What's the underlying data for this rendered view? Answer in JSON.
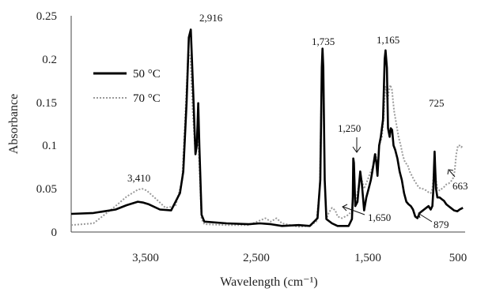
{
  "chart_data": {
    "type": "line",
    "title": "",
    "xlabel": "Wavelength (cm⁻¹)",
    "ylabel": "Absorbance",
    "xlim": [
      4000,
      450
    ],
    "ylim": [
      0,
      0.25
    ],
    "x_ticks": [
      3500,
      2500,
      1500,
      500
    ],
    "x_tick_labels": [
      "3,500",
      "2,500",
      "1,500",
      "500"
    ],
    "y_ticks": [
      0,
      0.05,
      0.1,
      0.15,
      0.2,
      0.25
    ],
    "y_tick_labels": [
      "0",
      "0.05",
      "0.1",
      "0.15",
      "0.2",
      "0.25"
    ],
    "grid": false,
    "legend_position": "top-left",
    "series": [
      {
        "name": "50 °C",
        "style": "solid",
        "color": "#000000",
        "points": [
          [
            4000,
            0.021
          ],
          [
            3800,
            0.022
          ],
          [
            3600,
            0.026
          ],
          [
            3500,
            0.031
          ],
          [
            3400,
            0.035
          ],
          [
            3350,
            0.034
          ],
          [
            3300,
            0.032
          ],
          [
            3200,
            0.026
          ],
          [
            3100,
            0.025
          ],
          [
            3020,
            0.045
          ],
          [
            2990,
            0.07
          ],
          [
            2960,
            0.15
          ],
          [
            2940,
            0.225
          ],
          [
            2922,
            0.234
          ],
          [
            2900,
            0.16
          ],
          [
            2880,
            0.09
          ],
          [
            2868,
            0.1
          ],
          [
            2855,
            0.149
          ],
          [
            2845,
            0.1
          ],
          [
            2825,
            0.02
          ],
          [
            2800,
            0.012
          ],
          [
            2600,
            0.01
          ],
          [
            2400,
            0.009
          ],
          [
            2300,
            0.01
          ],
          [
            2200,
            0.009
          ],
          [
            2100,
            0.007
          ],
          [
            1950,
            0.008
          ],
          [
            1850,
            0.007
          ],
          [
            1780,
            0.016
          ],
          [
            1755,
            0.06
          ],
          [
            1742,
            0.19
          ],
          [
            1735,
            0.212
          ],
          [
            1728,
            0.19
          ],
          [
            1715,
            0.06
          ],
          [
            1700,
            0.015
          ],
          [
            1650,
            0.01
          ],
          [
            1600,
            0.007
          ],
          [
            1500,
            0.007
          ],
          [
            1470,
            0.015
          ],
          [
            1462,
            0.04
          ],
          [
            1458,
            0.085
          ],
          [
            1452,
            0.08
          ],
          [
            1440,
            0.03
          ],
          [
            1420,
            0.035
          ],
          [
            1395,
            0.07
          ],
          [
            1380,
            0.055
          ],
          [
            1360,
            0.025
          ],
          [
            1340,
            0.04
          ],
          [
            1320,
            0.05
          ],
          [
            1300,
            0.06
          ],
          [
            1280,
            0.075
          ],
          [
            1262,
            0.09
          ],
          [
            1250,
            0.08
          ],
          [
            1240,
            0.065
          ],
          [
            1225,
            0.1
          ],
          [
            1210,
            0.11
          ],
          [
            1190,
            0.13
          ],
          [
            1175,
            0.2
          ],
          [
            1167,
            0.21
          ],
          [
            1155,
            0.19
          ],
          [
            1145,
            0.12
          ],
          [
            1130,
            0.11
          ],
          [
            1120,
            0.12
          ],
          [
            1108,
            0.118
          ],
          [
            1095,
            0.1
          ],
          [
            1080,
            0.095
          ],
          [
            1060,
            0.085
          ],
          [
            1040,
            0.07
          ],
          [
            1020,
            0.06
          ],
          [
            1000,
            0.045
          ],
          [
            980,
            0.035
          ],
          [
            960,
            0.032
          ],
          [
            940,
            0.03
          ],
          [
            920,
            0.026
          ],
          [
            900,
            0.018
          ],
          [
            880,
            0.016
          ],
          [
            860,
            0.022
          ],
          [
            840,
            0.024
          ],
          [
            820,
            0.026
          ],
          [
            800,
            0.028
          ],
          [
            780,
            0.03
          ],
          [
            760,
            0.026
          ],
          [
            745,
            0.03
          ],
          [
            736,
            0.05
          ],
          [
            730,
            0.075
          ],
          [
            725,
            0.093
          ],
          [
            720,
            0.075
          ],
          [
            712,
            0.05
          ],
          [
            700,
            0.04
          ],
          [
            680,
            0.04
          ],
          [
            660,
            0.038
          ],
          [
            640,
            0.036
          ],
          [
            620,
            0.032
          ],
          [
            600,
            0.03
          ],
          [
            580,
            0.028
          ],
          [
            550,
            0.025
          ],
          [
            520,
            0.024
          ],
          [
            500,
            0.026
          ],
          [
            470,
            0.028
          ]
        ]
      },
      {
        "name": "70 °C",
        "style": "dotted",
        "color": "#9a9a9a",
        "points": [
          [
            4000,
            0.008
          ],
          [
            3800,
            0.01
          ],
          [
            3700,
            0.02
          ],
          [
            3600,
            0.03
          ],
          [
            3500,
            0.041
          ],
          [
            3450,
            0.045
          ],
          [
            3400,
            0.049
          ],
          [
            3360,
            0.05
          ],
          [
            3320,
            0.048
          ],
          [
            3250,
            0.04
          ],
          [
            3150,
            0.028
          ],
          [
            3060,
            0.03
          ],
          [
            3000,
            0.06
          ],
          [
            2970,
            0.14
          ],
          [
            2945,
            0.21
          ],
          [
            2925,
            0.2
          ],
          [
            2905,
            0.14
          ],
          [
            2885,
            0.1
          ],
          [
            2870,
            0.1
          ],
          [
            2858,
            0.12
          ],
          [
            2846,
            0.08
          ],
          [
            2825,
            0.015
          ],
          [
            2800,
            0.009
          ],
          [
            2600,
            0.008
          ],
          [
            2400,
            0.008
          ],
          [
            2250,
            0.016
          ],
          [
            2200,
            0.012
          ],
          [
            2150,
            0.016
          ],
          [
            2100,
            0.01
          ],
          [
            1950,
            0.006
          ],
          [
            1850,
            0.007
          ],
          [
            1790,
            0.012
          ],
          [
            1760,
            0.05
          ],
          [
            1745,
            0.16
          ],
          [
            1737,
            0.178
          ],
          [
            1728,
            0.17
          ],
          [
            1715,
            0.06
          ],
          [
            1700,
            0.015
          ],
          [
            1680,
            0.022
          ],
          [
            1650,
            0.028
          ],
          [
            1620,
            0.025
          ],
          [
            1600,
            0.018
          ],
          [
            1560,
            0.016
          ],
          [
            1500,
            0.02
          ],
          [
            1470,
            0.025
          ],
          [
            1460,
            0.045
          ],
          [
            1455,
            0.07
          ],
          [
            1448,
            0.05
          ],
          [
            1440,
            0.03
          ],
          [
            1420,
            0.045
          ],
          [
            1395,
            0.065
          ],
          [
            1380,
            0.06
          ],
          [
            1360,
            0.05
          ],
          [
            1330,
            0.06
          ],
          [
            1300,
            0.07
          ],
          [
            1270,
            0.08
          ],
          [
            1255,
            0.09
          ],
          [
            1240,
            0.075
          ],
          [
            1225,
            0.1
          ],
          [
            1200,
            0.11
          ],
          [
            1185,
            0.13
          ],
          [
            1170,
            0.168
          ],
          [
            1160,
            0.165
          ],
          [
            1150,
            0.15
          ],
          [
            1140,
            0.16
          ],
          [
            1125,
            0.17
          ],
          [
            1110,
            0.165
          ],
          [
            1090,
            0.14
          ],
          [
            1070,
            0.125
          ],
          [
            1050,
            0.11
          ],
          [
            1030,
            0.1
          ],
          [
            1010,
            0.088
          ],
          [
            990,
            0.08
          ],
          [
            970,
            0.078
          ],
          [
            950,
            0.07
          ],
          [
            930,
            0.065
          ],
          [
            910,
            0.06
          ],
          [
            890,
            0.056
          ],
          [
            870,
            0.052
          ],
          [
            850,
            0.05
          ],
          [
            830,
            0.05
          ],
          [
            800,
            0.048
          ],
          [
            780,
            0.046
          ],
          [
            760,
            0.045
          ],
          [
            745,
            0.05
          ],
          [
            735,
            0.065
          ],
          [
            728,
            0.077
          ],
          [
            722,
            0.075
          ],
          [
            712,
            0.06
          ],
          [
            700,
            0.05
          ],
          [
            680,
            0.048
          ],
          [
            660,
            0.05
          ],
          [
            640,
            0.052
          ],
          [
            620,
            0.055
          ],
          [
            600,
            0.056
          ],
          [
            580,
            0.058
          ],
          [
            560,
            0.062
          ],
          [
            545,
            0.07
          ],
          [
            530,
            0.09
          ],
          [
            515,
            0.1
          ],
          [
            500,
            0.1
          ],
          [
            485,
            0.098
          ],
          [
            470,
            0.1
          ]
        ]
      }
    ],
    "annotations": [
      {
        "text": "2,916",
        "x": 2916,
        "y": 0.234
      },
      {
        "text": "3,410",
        "x": 3410,
        "y": 0.05
      },
      {
        "text": "1,735",
        "x": 1735,
        "y": 0.212
      },
      {
        "text": "1,165",
        "x": 1165,
        "y": 0.21
      },
      {
        "text": "1,250",
        "x": 1250,
        "y": 0.09
      },
      {
        "text": "725",
        "x": 725,
        "y": 0.093
      },
      {
        "text": "1,650",
        "x": 1650,
        "y": 0.028
      },
      {
        "text": "879",
        "x": 879,
        "y": 0.016
      },
      {
        "text": "663",
        "x": 663,
        "y": 0.05
      }
    ]
  }
}
